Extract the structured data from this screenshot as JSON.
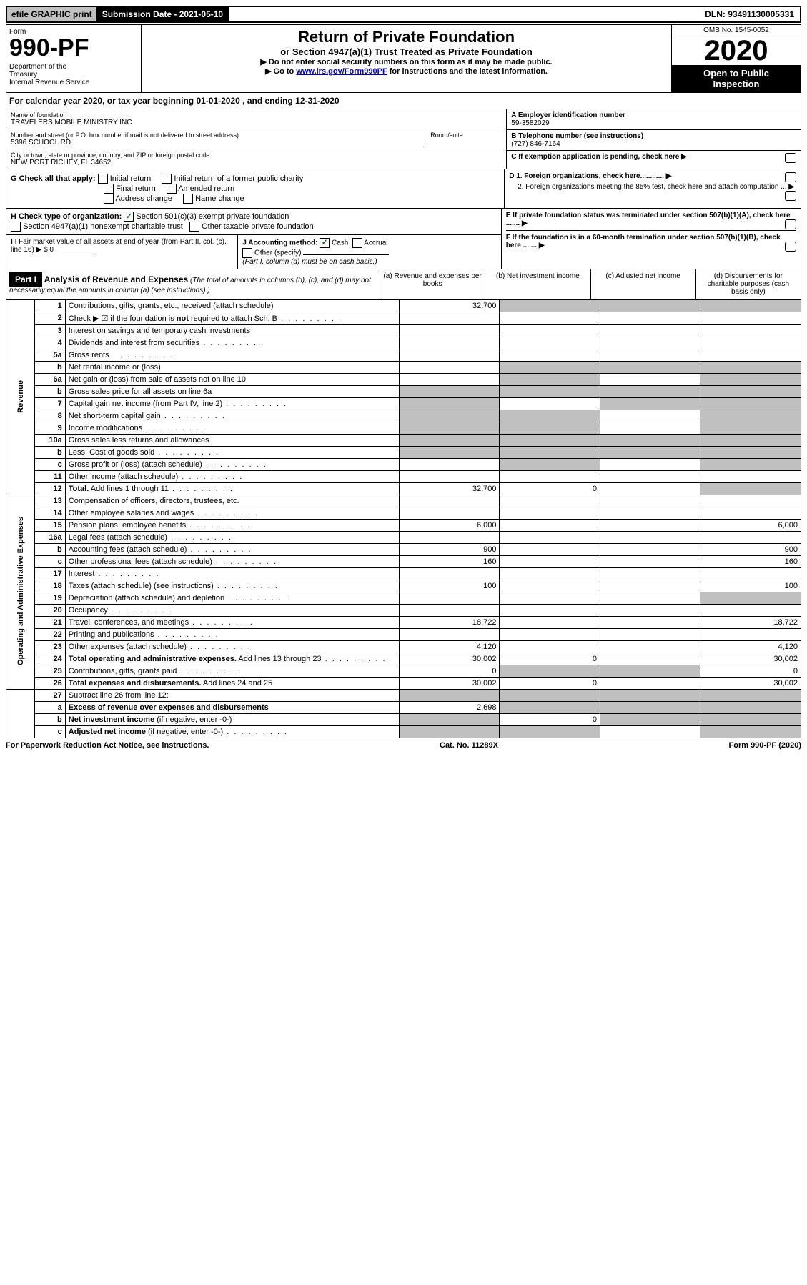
{
  "topbar": {
    "efile": "efile GRAPHIC print",
    "submission": "Submission Date - 2021-05-10",
    "dln": "DLN: 93491130005331"
  },
  "header": {
    "form_label": "Form",
    "form_number": "990-PF",
    "dept": "Department of the Treasury\nInternal Revenue Service",
    "title": "Return of Private Foundation",
    "subtitle": "or Section 4947(a)(1) Trust Treated as Private Foundation",
    "instr1": "▶ Do not enter social security numbers on this form as it may be made public.",
    "instr2_pre": "▶ Go to ",
    "instr2_link": "www.irs.gov/Form990PF",
    "instr2_post": " for instructions and the latest information.",
    "omb": "OMB No. 1545-0052",
    "year": "2020",
    "open": "Open to Public Inspection"
  },
  "calyear": "For calendar year 2020, or tax year beginning 01-01-2020               , and ending 12-31-2020",
  "entity": {
    "name_label": "Name of foundation",
    "name": "TRAVELERS MOBILE MINISTRY INC",
    "addr_label": "Number and street (or P.O. box number if mail is not delivered to street address)",
    "addr": "5396 SCHOOL RD",
    "room_label": "Room/suite",
    "city_label": "City or town, state or province, country, and ZIP or foreign postal code",
    "city": "NEW PORT RICHEY, FL  34652",
    "ein_label": "A Employer identification number",
    "ein": "59-3582029",
    "phone_label": "B Telephone number (see instructions)",
    "phone": "(727) 846-7164",
    "c_label": "C If exemption application is pending, check here"
  },
  "g": {
    "label": "G Check all that apply:",
    "items": [
      "Initial return",
      "Initial return of a former public charity",
      "Final return",
      "Amended return",
      "Address change",
      "Name change"
    ]
  },
  "d": {
    "d1": "D 1. Foreign organizations, check here............",
    "d2": "2. Foreign organizations meeting the 85% test, check here and attach computation ..."
  },
  "h": {
    "label": "H Check type of organization:",
    "opt1": "Section 501(c)(3) exempt private foundation",
    "opt2": "Section 4947(a)(1) nonexempt charitable trust",
    "opt3": "Other taxable private foundation"
  },
  "e": "E  If private foundation status was terminated under section 507(b)(1)(A), check here .......",
  "i": {
    "label": "I Fair market value of all assets at end of year (from Part II, col. (c), line 16)",
    "prefix": "▶ $",
    "value": "0"
  },
  "j": {
    "label": "J Accounting method:",
    "cash": "Cash",
    "accrual": "Accrual",
    "other": "Other (specify)",
    "note": "(Part I, column (d) must be on cash basis.)"
  },
  "f": "F  If the foundation is in a 60-month termination under section 507(b)(1)(B), check here .......",
  "partI": {
    "tag": "Part I",
    "title": "Analysis of Revenue and Expenses",
    "note": "(The total of amounts in columns (b), (c), and (d) may not necessarily equal the amounts in column (a) (see instructions).)",
    "colA": "(a)   Revenue and expenses per books",
    "colB": "(b)   Net investment income",
    "colC": "(c)   Adjusted net income",
    "colD": "(d)   Disbursements for charitable purposes (cash basis only)"
  },
  "side": {
    "revenue": "Revenue",
    "opex": "Operating and Administrative Expenses"
  },
  "rows": [
    {
      "n": "1",
      "d": "Contributions, gifts, grants, etc., received (attach schedule)",
      "a": "32,700",
      "bg_b": true,
      "bg_c": true,
      "bg_d": true
    },
    {
      "n": "2",
      "d": "Check ▶ ☑ if the foundation is <b>not</b> required to attach Sch. B",
      "nocols": true,
      "dots": true
    },
    {
      "n": "3",
      "d": "Interest on savings and temporary cash investments"
    },
    {
      "n": "4",
      "d": "Dividends and interest from securities",
      "dots": true
    },
    {
      "n": "5a",
      "d": "Gross rents",
      "dots": true
    },
    {
      "n": "b",
      "d": "Net rental income or (loss)",
      "inset": true,
      "bg_b": true,
      "bg_c": true,
      "bg_d": true
    },
    {
      "n": "6a",
      "d": "Net gain or (loss) from sale of assets not on line 10",
      "bg_b": true,
      "bg_d": true
    },
    {
      "n": "b",
      "d": "Gross sales price for all assets on line 6a",
      "inset": true,
      "bg_a": true,
      "bg_b": true,
      "bg_c": true,
      "bg_d": true
    },
    {
      "n": "7",
      "d": "Capital gain net income (from Part IV, line 2)",
      "dots": true,
      "bg_a": true,
      "bg_c": true,
      "bg_d": true
    },
    {
      "n": "8",
      "d": "Net short-term capital gain",
      "dots": true,
      "bg_a": true,
      "bg_b": true,
      "bg_d": true
    },
    {
      "n": "9",
      "d": "Income modifications",
      "dots": true,
      "bg_a": true,
      "bg_b": true,
      "bg_d": true
    },
    {
      "n": "10a",
      "d": "Gross sales less returns and allowances",
      "inset": true,
      "bg_a": true,
      "bg_b": true,
      "bg_c": true,
      "bg_d": true
    },
    {
      "n": "b",
      "d": "Less: Cost of goods sold",
      "dots": true,
      "inset": true,
      "bg_a": true,
      "bg_b": true,
      "bg_c": true,
      "bg_d": true
    },
    {
      "n": "c",
      "d": "Gross profit or (loss) (attach schedule)",
      "dots": true,
      "bg_b": true,
      "bg_d": true
    },
    {
      "n": "11",
      "d": "Other income (attach schedule)",
      "dots": true
    },
    {
      "n": "12",
      "d": "<b>Total.</b> Add lines 1 through 11",
      "dots": true,
      "a": "32,700",
      "b": "0",
      "bg_d": true
    }
  ],
  "oprows": [
    {
      "n": "13",
      "d": "Compensation of officers, directors, trustees, etc."
    },
    {
      "n": "14",
      "d": "Other employee salaries and wages",
      "dots": true
    },
    {
      "n": "15",
      "d": "Pension plans, employee benefits",
      "dots": true,
      "a": "6,000",
      "dd": "6,000"
    },
    {
      "n": "16a",
      "d": "Legal fees (attach schedule)",
      "dots": true
    },
    {
      "n": "b",
      "d": "Accounting fees (attach schedule)",
      "dots": true,
      "a": "900",
      "dd": "900"
    },
    {
      "n": "c",
      "d": "Other professional fees (attach schedule)",
      "dots": true,
      "a": "160",
      "dd": "160"
    },
    {
      "n": "17",
      "d": "Interest",
      "dots": true
    },
    {
      "n": "18",
      "d": "Taxes (attach schedule) (see instructions)",
      "dots": true,
      "a": "100",
      "dd": "100"
    },
    {
      "n": "19",
      "d": "Depreciation (attach schedule) and depletion",
      "dots": true,
      "bg_d": true
    },
    {
      "n": "20",
      "d": "Occupancy",
      "dots": true
    },
    {
      "n": "21",
      "d": "Travel, conferences, and meetings",
      "dots": true,
      "a": "18,722",
      "dd": "18,722"
    },
    {
      "n": "22",
      "d": "Printing and publications",
      "dots": true
    },
    {
      "n": "23",
      "d": "Other expenses (attach schedule)",
      "dots": true,
      "a": "4,120",
      "dd": "4,120"
    },
    {
      "n": "24",
      "d": "<b>Total operating and administrative expenses.</b> Add lines 13 through 23",
      "dots": true,
      "a": "30,002",
      "b": "0",
      "dd": "30,002"
    },
    {
      "n": "25",
      "d": "Contributions, gifts, grants paid",
      "dots": true,
      "a": "0",
      "bg_b": true,
      "bg_c": true,
      "dd": "0"
    },
    {
      "n": "26",
      "d": "<b>Total expenses and disbursements.</b> Add lines 24 and 25",
      "a": "30,002",
      "b": "0",
      "dd": "30,002"
    }
  ],
  "netrows": [
    {
      "n": "27",
      "d": "Subtract line 26 from line 12:",
      "bg_a": true,
      "bg_b": true,
      "bg_c": true,
      "bg_d": true
    },
    {
      "n": "a",
      "d": "<b>Excess of revenue over expenses and disbursements</b>",
      "a": "2,698",
      "bg_b": true,
      "bg_c": true,
      "bg_d": true
    },
    {
      "n": "b",
      "d": "<b>Net investment income</b> (if negative, enter -0-)",
      "bg_a": true,
      "b": "0",
      "bg_c": true,
      "bg_d": true
    },
    {
      "n": "c",
      "d": "<b>Adjusted net income</b> (if negative, enter -0-)",
      "dots": true,
      "bg_a": true,
      "bg_b": true,
      "bg_d": true
    }
  ],
  "footer": {
    "left": "For Paperwork Reduction Act Notice, see instructions.",
    "mid": "Cat. No. 11289X",
    "right": "Form 990-PF (2020)"
  }
}
